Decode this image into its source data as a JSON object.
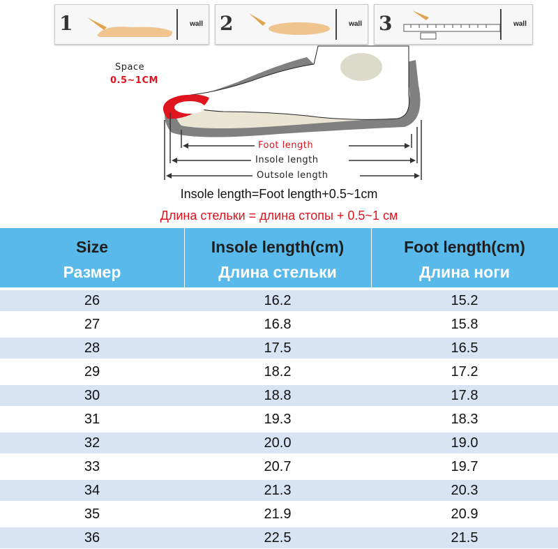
{
  "steps": [
    {
      "number": "1",
      "wall_label": "wall"
    },
    {
      "number": "2",
      "wall_label": "wall"
    },
    {
      "number": "3",
      "wall_label": "wall"
    }
  ],
  "diagram": {
    "space_label": "Space",
    "space_value": "0.5~1CM",
    "foot_length": "Foot length",
    "insole_length": "Insole length",
    "outsole_length": "Outsole length"
  },
  "formula_en": "Insole length=Foot length+0.5~1cm",
  "formula_ru": "Длина стельки = длина стопы + 0.5~1 см",
  "table": {
    "headers": [
      {
        "en": "Size",
        "ru": "Размер"
      },
      {
        "en": "Insole length(cm)",
        "ru": "Длина стельки"
      },
      {
        "en": "Foot length(cm)",
        "ru": "Длина ноги"
      }
    ],
    "rows": [
      [
        "26",
        "16.2",
        "15.2"
      ],
      [
        "27",
        "16.8",
        "15.8"
      ],
      [
        "28",
        "17.5",
        "16.5"
      ],
      [
        "29",
        "18.2",
        "17.2"
      ],
      [
        "30",
        "18.8",
        "17.8"
      ],
      [
        "31",
        "19.3",
        "18.3"
      ],
      [
        "32",
        "20.0",
        "19.0"
      ],
      [
        "33",
        "20.7",
        "19.7"
      ],
      [
        "34",
        "21.3",
        "20.3"
      ],
      [
        "35",
        "21.9",
        "20.9"
      ],
      [
        "36",
        "22.5",
        "21.5"
      ]
    ]
  },
  "colors": {
    "header_bg": "#58b9ea",
    "row_stripe": "#d8e3f4",
    "accent_red": "#e0141e"
  }
}
